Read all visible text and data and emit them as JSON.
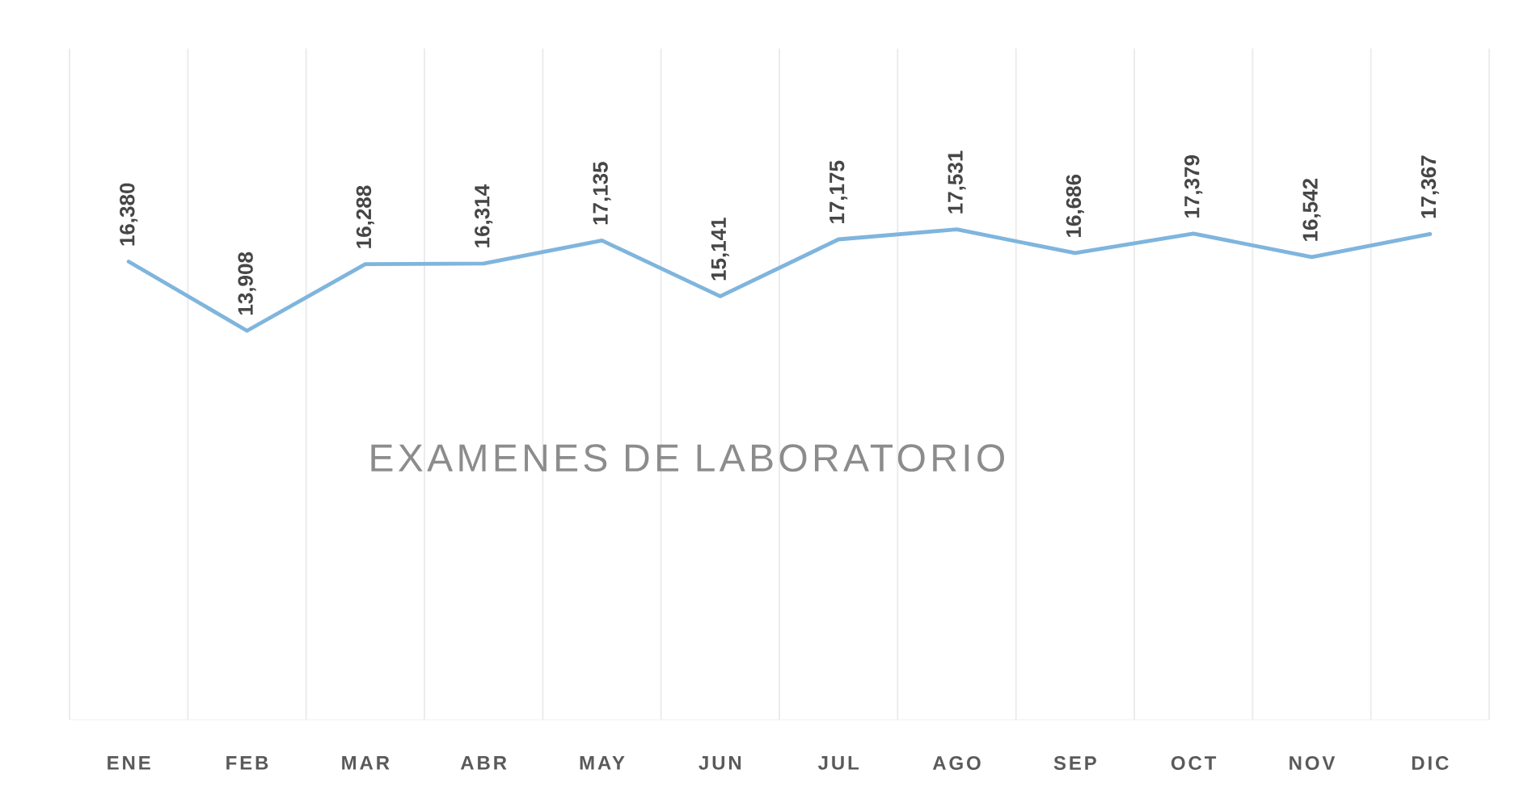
{
  "chart_data": {
    "type": "line",
    "title": "EXAMENES DE LABORATORIO",
    "categories": [
      "ENE",
      "FEB",
      "MAR",
      "ABR",
      "MAY",
      "JUN",
      "JUL",
      "AGO",
      "SEP",
      "OCT",
      "NOV",
      "DIC"
    ],
    "values": [
      16380,
      13908,
      16288,
      16314,
      17135,
      15141,
      17175,
      17531,
      16686,
      17379,
      16542,
      17367
    ],
    "value_labels": [
      "16,380",
      "13,908",
      "16,288",
      "16,314",
      "17,135",
      "15,141",
      "17,175",
      "17,531",
      "16,686",
      "17,379",
      "16,542",
      "17,367"
    ],
    "color": "#7fb5dd",
    "ylim": [
      0,
      24000
    ],
    "grid": "x",
    "tick_labels": "x"
  }
}
